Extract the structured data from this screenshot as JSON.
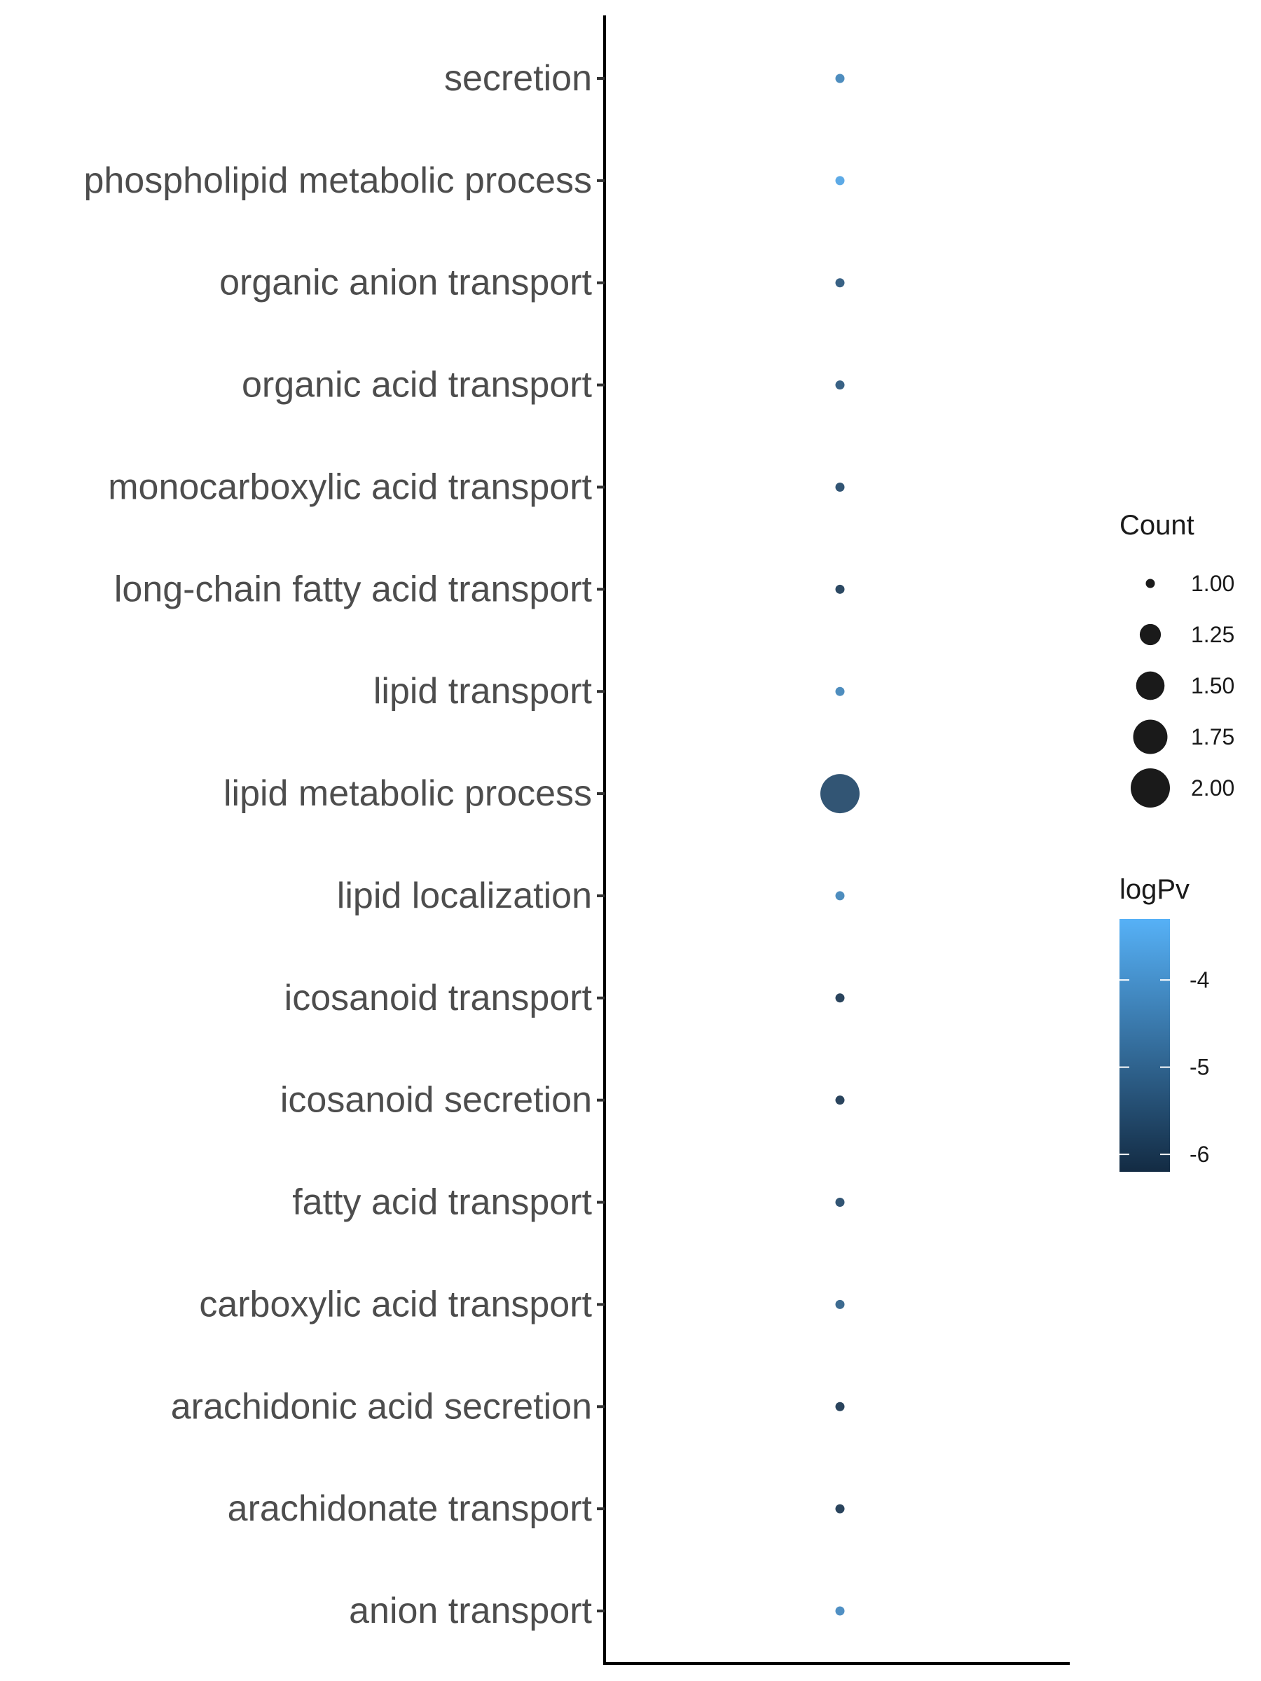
{
  "chart_data": {
    "type": "scatter",
    "categories": [
      "secretion",
      "phospholipid metabolic process",
      "organic anion transport",
      "organic acid transport",
      "monocarboxylic acid transport",
      "long-chain fatty acid transport",
      "lipid transport",
      "lipid metabolic process",
      "lipid localization",
      "icosanoid transport",
      "icosanoid secretion",
      "fatty acid transport",
      "carboxylic acid transport",
      "arachidonic acid secretion",
      "arachidonate transport",
      "anion transport"
    ],
    "count": [
      1,
      1,
      1,
      1,
      1,
      1,
      1,
      2,
      1,
      1,
      1,
      1,
      1,
      1,
      1,
      1
    ],
    "logPv": [
      -4.3,
      -3.6,
      -5.3,
      -5.3,
      -5.6,
      -5.9,
      -4.3,
      -5.6,
      -4.3,
      -6.0,
      -6.0,
      -5.6,
      -5.1,
      -6.0,
      -6.0,
      -4.2
    ],
    "xlabel": "",
    "ylabel": "",
    "title": "",
    "legend": {
      "position": "right",
      "size_title": "Count",
      "size_values": [
        "1.00",
        "1.25",
        "1.50",
        "1.75",
        "2.00"
      ],
      "color_title": "logPv",
      "color_ticks": [
        "-4",
        "-5",
        "-6"
      ],
      "color_range": [
        -6.2,
        -3.3
      ],
      "color_low": "#132b43",
      "color_high": "#56b1f7"
    },
    "grid": false
  }
}
